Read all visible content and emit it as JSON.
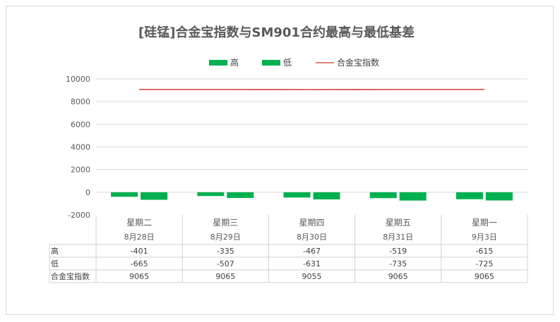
{
  "chart_data": {
    "type": "bar",
    "title": "[硅锰]合金宝指数与SM901合约最高与最低基差",
    "categories": [
      "星期二",
      "星期三",
      "星期四",
      "星期五",
      "星期一"
    ],
    "dates": [
      "8月28日",
      "8月29日",
      "8月30日",
      "8月31日",
      "9月3日"
    ],
    "series": [
      {
        "name": "高",
        "type": "bar",
        "color": "#00b050",
        "values": [
          -401,
          -335,
          -467,
          -519,
          -615
        ]
      },
      {
        "name": "低",
        "type": "bar",
        "color": "#00b050",
        "values": [
          -665,
          -507,
          -631,
          -735,
          -725
        ]
      },
      {
        "name": "合金宝指数",
        "type": "line",
        "color": "#c00000",
        "values": [
          9065,
          9065,
          9055,
          9065,
          9065
        ]
      }
    ],
    "ylim": [
      -2000,
      10000
    ],
    "yticks": [
      10000,
      8000,
      6000,
      4000,
      2000,
      0,
      -2000
    ],
    "grid": true,
    "legend": "top"
  }
}
